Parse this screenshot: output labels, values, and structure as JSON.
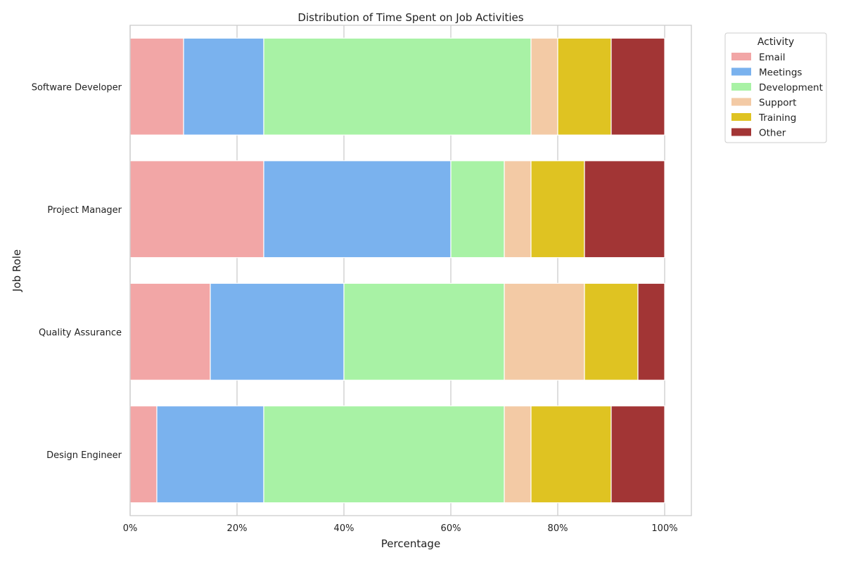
{
  "chart_data": {
    "type": "bar",
    "orientation": "horizontal",
    "stacked": true,
    "title": "Distribution of Time Spent on Job Activities",
    "xlabel": "Percentage",
    "ylabel": "Job Role",
    "xlim": [
      0,
      105
    ],
    "x_ticks": [
      "0%",
      "20%",
      "40%",
      "60%",
      "80%",
      "100%"
    ],
    "x_tick_values": [
      0,
      20,
      40,
      60,
      80,
      100
    ],
    "grid": true,
    "legend_placement": "outside-top-right",
    "legend_title": "Activity",
    "categories": [
      "Software Developer",
      "Project Manager",
      "Quality Assurance",
      "Design Engineer"
    ],
    "series": [
      {
        "name": "Email",
        "color": "#f2a6a6",
        "values": [
          10,
          25,
          15,
          5
        ]
      },
      {
        "name": "Meetings",
        "color": "#7ab2ee",
        "values": [
          15,
          35,
          25,
          20
        ]
      },
      {
        "name": "Development",
        "color": "#a8f2a5",
        "values": [
          50,
          10,
          30,
          45
        ]
      },
      {
        "name": "Support",
        "color": "#f3caa5",
        "values": [
          5,
          5,
          15,
          5
        ]
      },
      {
        "name": "Training",
        "color": "#dfc322",
        "values": [
          10,
          10,
          10,
          15
        ]
      },
      {
        "name": "Other",
        "color": "#a23535",
        "values": [
          10,
          15,
          5,
          10
        ]
      }
    ]
  }
}
